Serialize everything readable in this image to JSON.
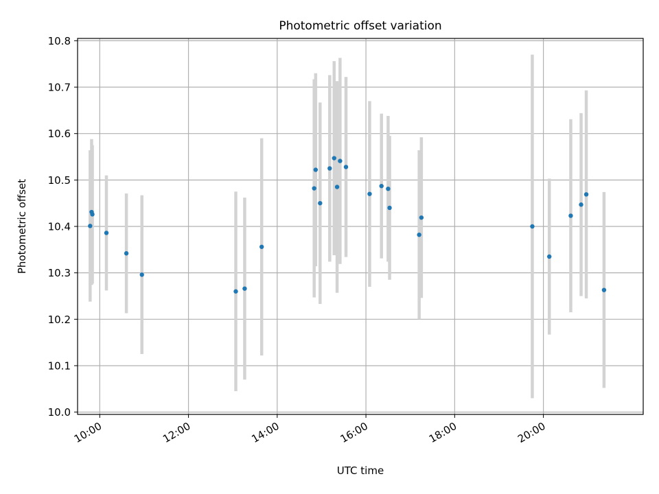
{
  "chart_data": {
    "type": "scatter",
    "title": "Photometric offset variation",
    "xlabel": "UTC time",
    "ylabel": "Photometric offset",
    "x_is_time": true,
    "xlim": [
      "09:30",
      "22:15"
    ],
    "ylim": [
      9.995,
      10.805
    ],
    "x_ticks": [
      "10:00",
      "12:00",
      "14:00",
      "16:00",
      "18:00",
      "20:00"
    ],
    "y_ticks": [
      "10.0",
      "10.1",
      "10.2",
      "10.3",
      "10.4",
      "10.5",
      "10.6",
      "10.7",
      "10.8"
    ],
    "grid": true,
    "colors": {
      "point": "#1f77b4",
      "errorbar": "#d3d3d3",
      "grid": "#b0b0b0"
    },
    "series": [
      {
        "points": [
          {
            "t": "09:47",
            "y": 10.401,
            "err": 0.163
          },
          {
            "t": "09:49",
            "y": 10.431,
            "err": 0.157
          },
          {
            "t": "09:50",
            "y": 10.426,
            "err": 0.149
          },
          {
            "t": "10:09",
            "y": 10.386,
            "err": 0.124
          },
          {
            "t": "10:36",
            "y": 10.342,
            "err": 0.129
          },
          {
            "t": "10:57",
            "y": 10.296,
            "err": 0.171
          },
          {
            "t": "13:04",
            "y": 10.26,
            "err": 0.215
          },
          {
            "t": "13:16",
            "y": 10.266,
            "err": 0.196
          },
          {
            "t": "13:39",
            "y": 10.356,
            "err": 0.234
          },
          {
            "t": "14:50",
            "y": 10.482,
            "err": 0.235
          },
          {
            "t": "14:52",
            "y": 10.522,
            "err": 0.208
          },
          {
            "t": "14:58",
            "y": 10.45,
            "err": 0.217
          },
          {
            "t": "15:11",
            "y": 10.525,
            "err": 0.201
          },
          {
            "t": "15:17",
            "y": 10.547,
            "err": 0.209
          },
          {
            "t": "15:21",
            "y": 10.485,
            "err": 0.228
          },
          {
            "t": "15:25",
            "y": 10.541,
            "err": 0.222
          },
          {
            "t": "15:33",
            "y": 10.528,
            "err": 0.194
          },
          {
            "t": "16:05",
            "y": 10.47,
            "err": 0.2
          },
          {
            "t": "16:21",
            "y": 10.487,
            "err": 0.156
          },
          {
            "t": "16:30",
            "y": 10.481,
            "err": 0.157
          },
          {
            "t": "16:32",
            "y": 10.44,
            "err": 0.155
          },
          {
            "t": "17:12",
            "y": 10.382,
            "err": 0.182
          },
          {
            "t": "17:15",
            "y": 10.419,
            "err": 0.173
          },
          {
            "t": "19:45",
            "y": 10.4,
            "err": 0.37
          },
          {
            "t": "20:08",
            "y": 10.335,
            "err": 0.168
          },
          {
            "t": "20:37",
            "y": 10.423,
            "err": 0.208
          },
          {
            "t": "20:51",
            "y": 10.447,
            "err": 0.197
          },
          {
            "t": "20:58",
            "y": 10.469,
            "err": 0.224
          },
          {
            "t": "21:22",
            "y": 10.263,
            "err": 0.211
          }
        ]
      }
    ]
  }
}
